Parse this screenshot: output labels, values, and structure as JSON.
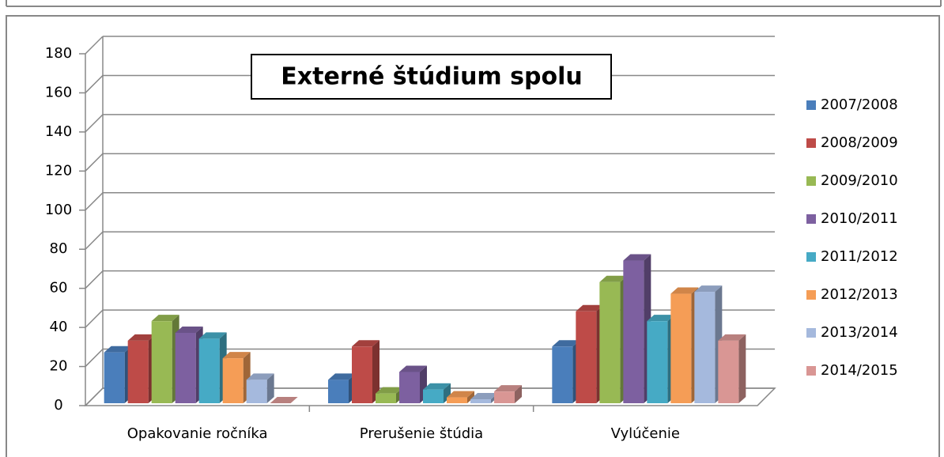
{
  "chart_data": {
    "type": "bar",
    "title": "Externé štúdium spolu",
    "categories": [
      "Opakovanie ročníka",
      "Prerušenie štúdia",
      "Vylúčenie"
    ],
    "series": [
      {
        "name": "2007/2008",
        "color": "#4a7ebb",
        "values": [
          26,
          12,
          29
        ]
      },
      {
        "name": "2008/2009",
        "color": "#be4b48",
        "values": [
          32,
          29,
          47
        ]
      },
      {
        "name": "2009/2010",
        "color": "#98b954",
        "values": [
          42,
          5,
          62
        ]
      },
      {
        "name": "2010/2011",
        "color": "#7d60a0",
        "values": [
          36,
          16,
          73
        ]
      },
      {
        "name": "2011/2012",
        "color": "#46aac5",
        "values": [
          33,
          7,
          42
        ]
      },
      {
        "name": "2012/2013",
        "color": "#f59d56",
        "values": [
          23,
          3,
          56
        ]
      },
      {
        "name": "2013/2014",
        "color": "#a5b9dd",
        "values": [
          12,
          2,
          57
        ]
      },
      {
        "name": "2014/2015",
        "color": "#d99694",
        "values": [
          0,
          6,
          32
        ]
      }
    ],
    "ylim": [
      0,
      180
    ],
    "yticks": [
      0,
      20,
      40,
      60,
      80,
      100,
      120,
      140,
      160,
      180
    ],
    "grid": true,
    "legend": "right"
  }
}
